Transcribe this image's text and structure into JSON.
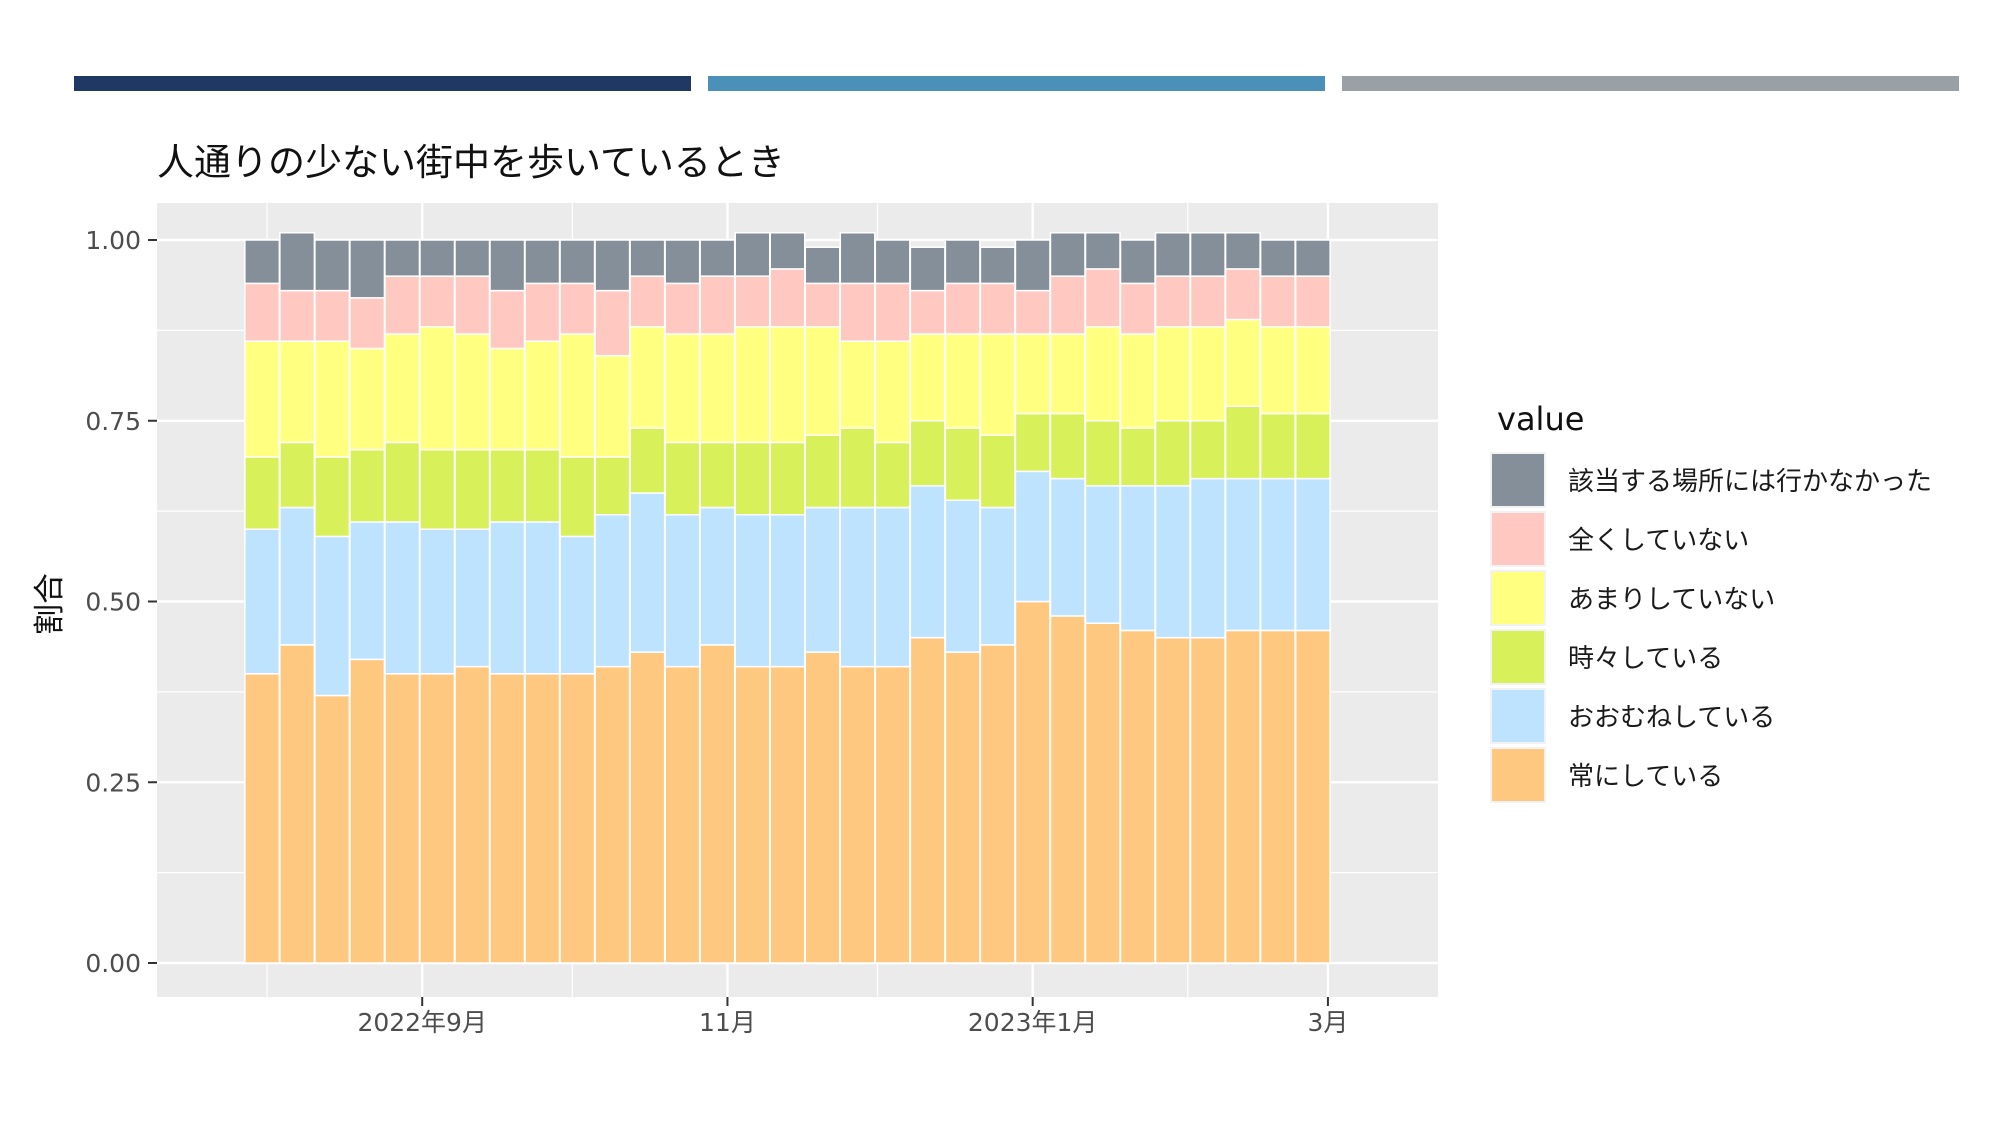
{
  "header_bars": {
    "colors": [
      "#1f3864",
      "#4a90b8",
      "#9aa1a6"
    ]
  },
  "chart_data": {
    "type": "bar",
    "stacked": true,
    "title": "人通りの少ない街中を歩いているとき",
    "ylabel": "割合",
    "xlabel": "",
    "ylim": [
      0,
      1
    ],
    "y_ticks": [
      "0.00",
      "0.25",
      "0.50",
      "0.75",
      "1.00"
    ],
    "x_tick_labels": [
      "2022年9月",
      "11月",
      "2023年1月",
      "3月"
    ],
    "x_tick_dates": [
      "2022-09-01",
      "2022-11-01",
      "2023-01-01",
      "2023-03-01"
    ],
    "x_minor_dates": [
      "2022-08-01",
      "2022-10-01",
      "2022-12-01",
      "2023-02-01"
    ],
    "x_range": [
      "2022-07-10",
      "2023-03-23"
    ],
    "x": [
      "2022-07-31",
      "2022-08-07",
      "2022-08-14",
      "2022-08-21",
      "2022-08-28",
      "2022-09-04",
      "2022-09-11",
      "2022-09-18",
      "2022-09-25",
      "2022-10-02",
      "2022-10-09",
      "2022-10-16",
      "2022-10-23",
      "2022-10-30",
      "2022-11-06",
      "2022-11-13",
      "2022-11-20",
      "2022-11-27",
      "2022-12-04",
      "2022-12-11",
      "2022-12-18",
      "2022-12-25",
      "2023-01-01",
      "2023-01-08",
      "2023-01-15",
      "2023-01-22",
      "2023-01-29",
      "2023-02-05",
      "2023-02-12",
      "2023-02-19",
      "2023-02-26"
    ],
    "legend_title": "value",
    "legend_position": "right",
    "grid": true,
    "series": [
      {
        "name": "常にしている",
        "color": "#ffc880",
        "values": [
          0.4,
          0.44,
          0.37,
          0.42,
          0.4,
          0.4,
          0.41,
          0.4,
          0.4,
          0.4,
          0.41,
          0.43,
          0.41,
          0.44,
          0.41,
          0.41,
          0.43,
          0.41,
          0.41,
          0.45,
          0.43,
          0.44,
          0.5,
          0.48,
          0.47,
          0.46,
          0.45,
          0.45,
          0.46,
          0.46,
          0.46
        ]
      },
      {
        "name": "おおむねしている",
        "color": "#bde3ff",
        "values": [
          0.2,
          0.19,
          0.22,
          0.19,
          0.21,
          0.2,
          0.19,
          0.21,
          0.21,
          0.19,
          0.21,
          0.22,
          0.21,
          0.19,
          0.21,
          0.21,
          0.2,
          0.22,
          0.22,
          0.21,
          0.21,
          0.19,
          0.18,
          0.19,
          0.19,
          0.2,
          0.21,
          0.22,
          0.21,
          0.21,
          0.21
        ]
      },
      {
        "name": "時々している",
        "color": "#d8f05a",
        "values": [
          0.1,
          0.09,
          0.11,
          0.1,
          0.11,
          0.11,
          0.11,
          0.1,
          0.1,
          0.11,
          0.08,
          0.09,
          0.1,
          0.09,
          0.1,
          0.1,
          0.1,
          0.11,
          0.09,
          0.09,
          0.1,
          0.1,
          0.08,
          0.09,
          0.09,
          0.08,
          0.09,
          0.08,
          0.1,
          0.09,
          0.09
        ]
      },
      {
        "name": "あまりしていない",
        "color": "#ffff80",
        "values": [
          0.16,
          0.14,
          0.16,
          0.14,
          0.15,
          0.17,
          0.16,
          0.14,
          0.15,
          0.17,
          0.14,
          0.14,
          0.15,
          0.15,
          0.16,
          0.16,
          0.15,
          0.12,
          0.14,
          0.12,
          0.13,
          0.14,
          0.11,
          0.11,
          0.13,
          0.13,
          0.13,
          0.13,
          0.12,
          0.12,
          0.12
        ]
      },
      {
        "name": "全くしていない",
        "color": "#ffc8c0",
        "values": [
          0.08,
          0.07,
          0.07,
          0.07,
          0.08,
          0.07,
          0.08,
          0.08,
          0.08,
          0.07,
          0.09,
          0.07,
          0.07,
          0.08,
          0.07,
          0.08,
          0.06,
          0.08,
          0.08,
          0.06,
          0.07,
          0.07,
          0.06,
          0.08,
          0.08,
          0.07,
          0.07,
          0.07,
          0.07,
          0.07,
          0.07
        ]
      },
      {
        "name": "該当する場所には行かなかった",
        "color": "#858f99",
        "values": [
          0.06,
          0.08,
          0.07,
          0.08,
          0.05,
          0.05,
          0.05,
          0.07,
          0.06,
          0.06,
          0.07,
          0.05,
          0.06,
          0.05,
          0.06,
          0.05,
          0.05,
          0.07,
          0.06,
          0.06,
          0.06,
          0.05,
          0.07,
          0.06,
          0.05,
          0.06,
          0.06,
          0.06,
          0.05,
          0.05,
          0.05
        ]
      }
    ]
  }
}
